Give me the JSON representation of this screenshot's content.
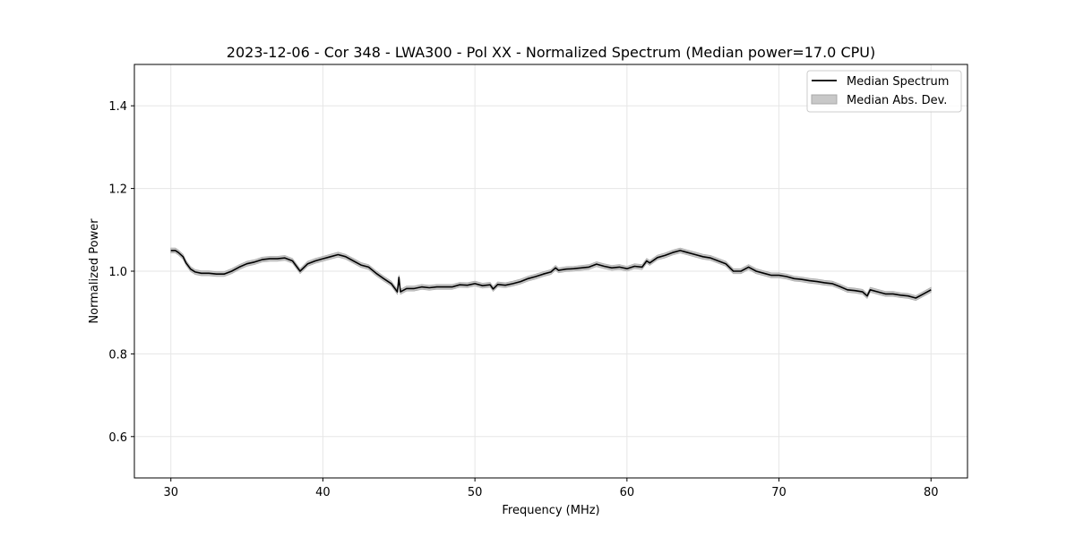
{
  "chart_data": {
    "type": "line",
    "title": "2023-12-06 - Cor 348 - LWA300 - Pol XX - Normalized Spectrum (Median power=17.0 CPU)",
    "xlabel": "Frequency (MHz)",
    "ylabel": "Normalized Power",
    "xlim": [
      27.6,
      82.4
    ],
    "ylim": [
      0.5,
      1.5
    ],
    "xticks": [
      30,
      40,
      50,
      60,
      70,
      80
    ],
    "xtick_labels": [
      "30",
      "40",
      "50",
      "60",
      "70",
      "80"
    ],
    "yticks": [
      0.6,
      0.8,
      1.0,
      1.2,
      1.4
    ],
    "ytick_labels": [
      "0.6",
      "0.8",
      "1.0",
      "1.2",
      "1.4"
    ],
    "grid": true,
    "legend_position": "upper-right",
    "colors": {
      "line": "#000000",
      "band": "#b0b0b0"
    },
    "series": [
      {
        "name": "Median Spectrum",
        "kind": "line",
        "x": [
          30.0,
          30.3,
          30.5,
          30.8,
          31.0,
          31.3,
          31.6,
          32.0,
          32.5,
          33.0,
          33.5,
          34.0,
          34.5,
          35.0,
          35.5,
          36.0,
          36.5,
          37.0,
          37.5,
          38.0,
          38.5,
          39.0,
          39.5,
          40.0,
          40.5,
          41.0,
          41.5,
          42.0,
          42.5,
          43.0,
          43.5,
          44.0,
          44.5,
          44.9,
          45.0,
          45.1,
          45.5,
          46.0,
          46.5,
          47.0,
          47.5,
          48.0,
          48.5,
          49.0,
          49.5,
          50.0,
          50.5,
          51.0,
          51.2,
          51.5,
          52.0,
          52.5,
          53.0,
          53.5,
          54.0,
          54.5,
          55.0,
          55.3,
          55.5,
          56.0,
          56.5,
          57.0,
          57.5,
          58.0,
          58.5,
          59.0,
          59.5,
          60.0,
          60.5,
          61.0,
          61.3,
          61.5,
          62.0,
          62.5,
          63.0,
          63.5,
          64.0,
          64.5,
          65.0,
          65.5,
          66.0,
          66.5,
          67.0,
          67.5,
          68.0,
          68.5,
          69.0,
          69.5,
          70.0,
          70.5,
          71.0,
          71.5,
          72.0,
          72.5,
          73.0,
          73.5,
          74.0,
          74.5,
          75.0,
          75.5,
          75.8,
          76.0,
          76.5,
          77.0,
          77.5,
          78.0,
          78.5,
          79.0,
          79.5,
          80.0
        ],
        "y": [
          1.05,
          1.05,
          1.045,
          1.035,
          1.02,
          1.005,
          0.998,
          0.995,
          0.995,
          0.993,
          0.993,
          1.0,
          1.01,
          1.018,
          1.022,
          1.028,
          1.03,
          1.03,
          1.032,
          1.025,
          1.0,
          1.018,
          1.025,
          1.03,
          1.035,
          1.04,
          1.035,
          1.025,
          1.015,
          1.01,
          0.995,
          0.982,
          0.97,
          0.95,
          0.985,
          0.95,
          0.958,
          0.958,
          0.962,
          0.96,
          0.962,
          0.962,
          0.962,
          0.967,
          0.966,
          0.97,
          0.965,
          0.967,
          0.957,
          0.968,
          0.966,
          0.97,
          0.975,
          0.982,
          0.987,
          0.993,
          0.998,
          1.008,
          1.002,
          1.005,
          1.006,
          1.008,
          1.01,
          1.017,
          1.012,
          1.008,
          1.01,
          1.006,
          1.012,
          1.01,
          1.025,
          1.02,
          1.033,
          1.038,
          1.045,
          1.05,
          1.045,
          1.04,
          1.035,
          1.032,
          1.025,
          1.018,
          1.0,
          1.0,
          1.01,
          1.0,
          0.995,
          0.99,
          0.99,
          0.987,
          0.982,
          0.98,
          0.977,
          0.975,
          0.972,
          0.97,
          0.963,
          0.955,
          0.953,
          0.95,
          0.94,
          0.955,
          0.95,
          0.945,
          0.945,
          0.942,
          0.94,
          0.935,
          0.945,
          0.955
        ]
      },
      {
        "name": "Median Abs. Dev.",
        "kind": "band",
        "half_width": 0.006
      }
    ]
  }
}
